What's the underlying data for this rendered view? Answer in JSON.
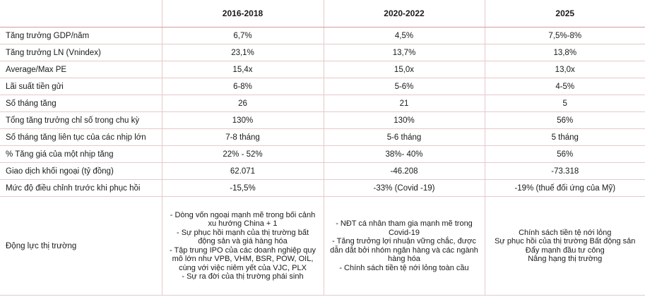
{
  "headers": [
    "",
    "2016-2018",
    "2020-2022",
    "2025"
  ],
  "rows": [
    {
      "label": "Tăng trưởng GDP/năm",
      "values": [
        "6,7%",
        "4,5%",
        "7,5%-8%"
      ]
    },
    {
      "label": "Tăng trưởng LN (Vnindex)",
      "values": [
        "23,1%",
        "13,7%",
        "13,8%"
      ]
    },
    {
      "label": "Average/Max PE",
      "values": [
        "15,4x",
        "15,0x",
        "13,0x"
      ]
    },
    {
      "label": "Lãi suất tiền gửi",
      "values": [
        "6-8%",
        "5-6%",
        "4-5%"
      ]
    },
    {
      "label": "Số tháng tăng",
      "values": [
        "26",
        "21",
        "5"
      ]
    },
    {
      "label": "Tổng tăng trưởng chỉ số trong chu kỳ",
      "values": [
        "130%",
        "130%",
        "56%"
      ]
    },
    {
      "label": "Số tháng tăng liên tục của các nhịp lớn",
      "values": [
        "7-8 tháng",
        "5-6 tháng",
        "5 tháng"
      ]
    },
    {
      "label": "% Tăng giá của một nhịp tăng",
      "values": [
        "22% - 52%",
        "38%- 40%",
        "56%"
      ]
    },
    {
      "label": "Giao dịch khối ngoại (tỷ đồng)",
      "values": [
        "62.071",
        "-46.208",
        "-73.318"
      ]
    },
    {
      "label": "Mức độ điều chỉnh trước khi phục hồi",
      "values": [
        "-15,5%",
        "-33% (Covid -19)",
        "-19% (thuế đối ứng của Mỹ)"
      ]
    }
  ],
  "drivers": {
    "label": "Động lực thị trường",
    "values": [
      "- Dòng vốn ngoại mạnh mẽ trong bối cảnh\nxu hướng China + 1\n- Sự phục hồi mạnh của thị trường bất\nđộng sản và giá hàng hóa\n- Tập trung IPO của các doanh nghiệp quy\nmô lớn như VPB, VHM, BSR, POW, OIL,\ncùng với việc niêm yết của VJC, PLX\n- Sự ra đời của thị trường phái sinh",
      "- NĐT cá nhân tham gia mạnh mẽ trong\nCovid-19\n- Tăng trưởng lợi nhuận vững chắc, được\ndẫn dắt bởi nhóm ngân hàng và các ngành\nhàng hóa\n- Chính sách tiền tệ nới lỏng toàn cầu",
      "Chính sách tiền tệ nới lỏng\nSự phục hồi của thị trường Bất động sản\nĐẩy mạnh đầu tư công\nNâng hạng thị trường"
    ]
  }
}
